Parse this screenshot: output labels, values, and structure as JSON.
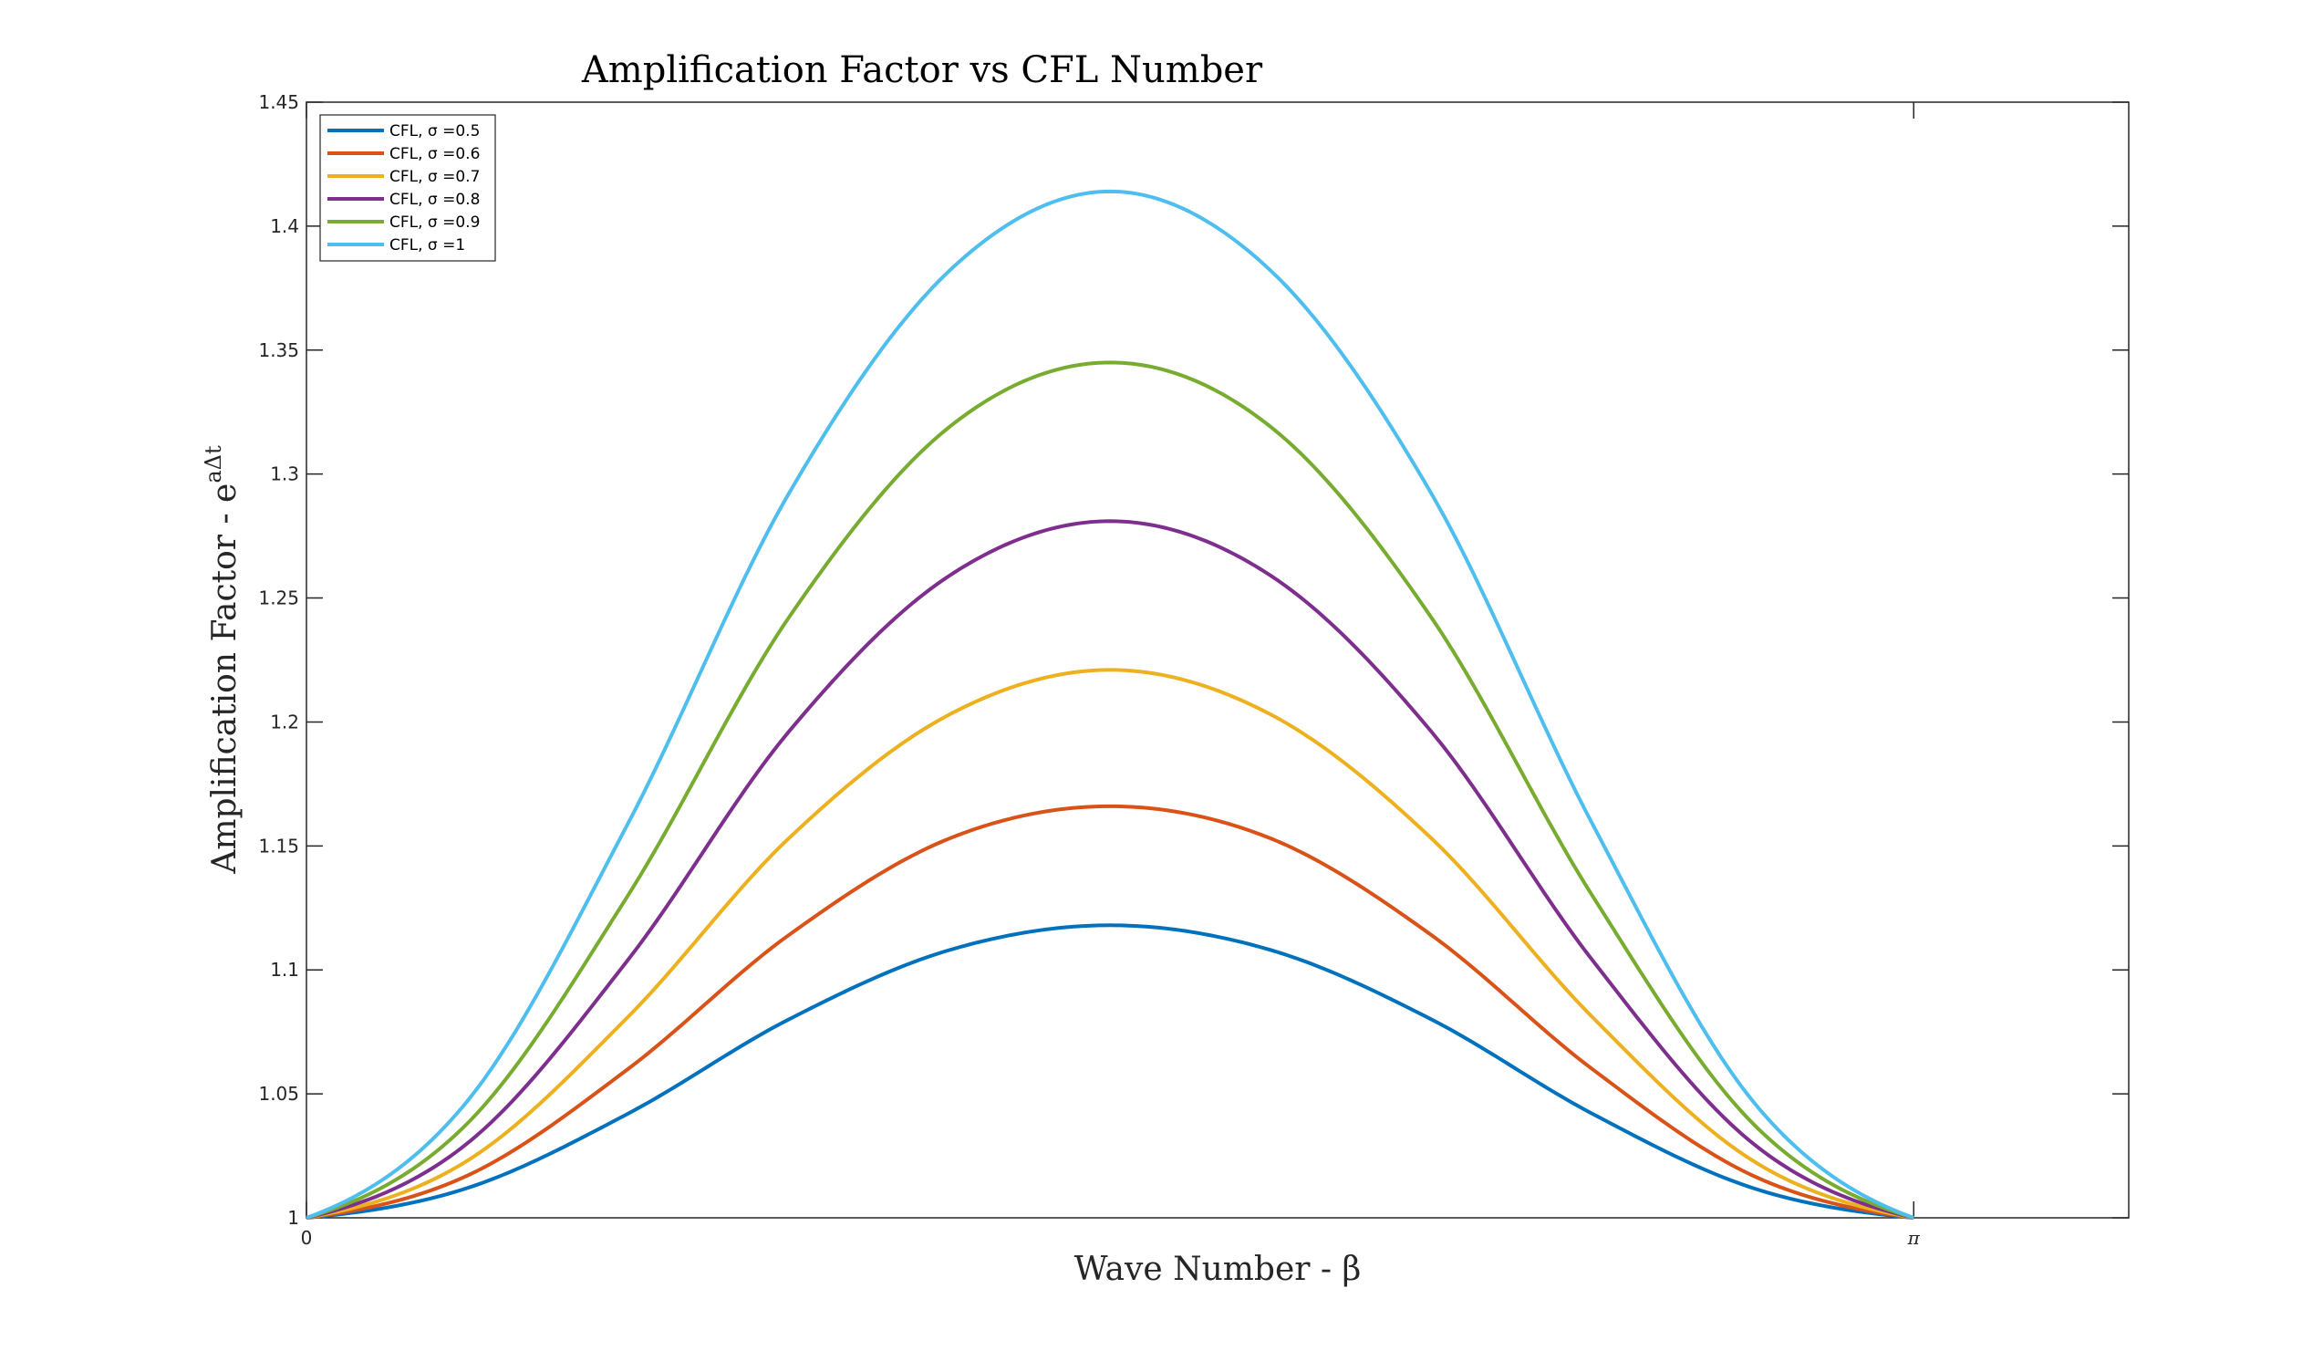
{
  "chart_data": {
    "type": "line",
    "title": "Amplification Factor vs CFL Number",
    "xlabel": "Wave Number - β",
    "ylabel": {
      "base": "Amplification Factor - e",
      "superscript": "aΔt"
    },
    "xlim": [
      0,
      3.5619
    ],
    "ylim": [
      1,
      1.45
    ],
    "xticks": [
      {
        "value": 0,
        "label": "0"
      },
      {
        "value": 3.14159,
        "label": "π"
      }
    ],
    "yticks": [
      {
        "value": 1,
        "label": "1"
      },
      {
        "value": 1.05,
        "label": "1.05"
      },
      {
        "value": 1.1,
        "label": "1.1"
      },
      {
        "value": 1.15,
        "label": "1.15"
      },
      {
        "value": 1.2,
        "label": "1.2"
      },
      {
        "value": 1.25,
        "label": "1.25"
      },
      {
        "value": 1.3,
        "label": "1.3"
      },
      {
        "value": 1.35,
        "label": "1.35"
      },
      {
        "value": 1.4,
        "label": "1.4"
      },
      {
        "value": 1.45,
        "label": "1.45"
      }
    ],
    "grid": false,
    "legend_position": "top-left",
    "x": [
      0,
      0.3142,
      0.6283,
      0.9425,
      1.2566,
      1.5708,
      1.885,
      2.1991,
      2.5133,
      2.8274,
      3.1416
    ],
    "series": [
      {
        "name": "CFL, σ =0.5",
        "sigma": 0.5,
        "color": "#0072BD",
        "values": [
          1.0,
          1.012,
          1.042,
          1.08,
          1.108,
          1.118,
          1.108,
          1.08,
          1.042,
          1.012,
          1.0
        ]
      },
      {
        "name": "CFL, σ =0.6",
        "sigma": 0.6,
        "color": "#D95319",
        "values": [
          1.0,
          1.017,
          1.06,
          1.114,
          1.153,
          1.166,
          1.153,
          1.114,
          1.06,
          1.017,
          1.0
        ]
      },
      {
        "name": "CFL, σ =0.7",
        "sigma": 0.7,
        "color": "#EDB120",
        "values": [
          1.0,
          1.023,
          1.081,
          1.153,
          1.203,
          1.221,
          1.203,
          1.153,
          1.081,
          1.023,
          1.0
        ]
      },
      {
        "name": "CFL, σ =0.8",
        "sigma": 0.8,
        "color": "#7E2F8E",
        "values": [
          1.0,
          1.03,
          1.104,
          1.196,
          1.259,
          1.281,
          1.259,
          1.196,
          1.104,
          1.03,
          1.0
        ]
      },
      {
        "name": "CFL, σ =0.9",
        "sigma": 0.9,
        "color": "#77AC30",
        "values": [
          1.0,
          1.038,
          1.13,
          1.242,
          1.319,
          1.345,
          1.319,
          1.242,
          1.13,
          1.038,
          1.0
        ]
      },
      {
        "name": "CFL, σ =1",
        "sigma": 1.0,
        "color": "#4DBEEE",
        "values": [
          1.0,
          1.047,
          1.159,
          1.292,
          1.382,
          1.414,
          1.382,
          1.292,
          1.159,
          1.047,
          1.0
        ]
      }
    ]
  }
}
